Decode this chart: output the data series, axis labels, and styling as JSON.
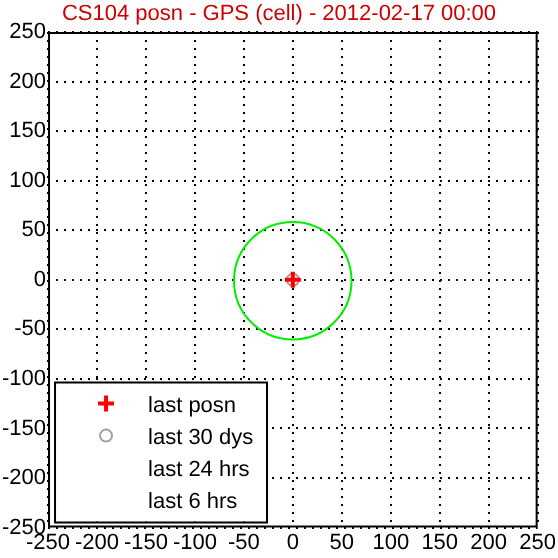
{
  "chart_data": {
    "type": "scatter",
    "title": "CS104 posn - GPS (cell) - 2012-02-17 00:00",
    "xlim": [
      -250,
      250
    ],
    "xticks": [
      -250,
      -200,
      -150,
      -100,
      -50,
      0,
      50,
      100,
      150,
      200,
      250
    ],
    "ylim": [
      -250,
      250
    ],
    "yticks": [
      -250,
      -200,
      -150,
      -100,
      -50,
      0,
      50,
      100,
      150,
      200,
      250
    ],
    "grid": true,
    "legend": "bottom left",
    "series": [
      {
        "name": "last posn",
        "color": "#ff0000",
        "marker": "cross",
        "x": [
          0
        ],
        "values": [
          0
        ]
      },
      {
        "name": "last 30 dys",
        "color": "#a0a0a0",
        "marker": "circle",
        "x": [
          0
        ],
        "values": [
          0
        ]
      },
      {
        "name": "last 24 hrs",
        "marker": "none"
      },
      {
        "name": "last 6 hrs",
        "marker": "none"
      }
    ]
  }
}
